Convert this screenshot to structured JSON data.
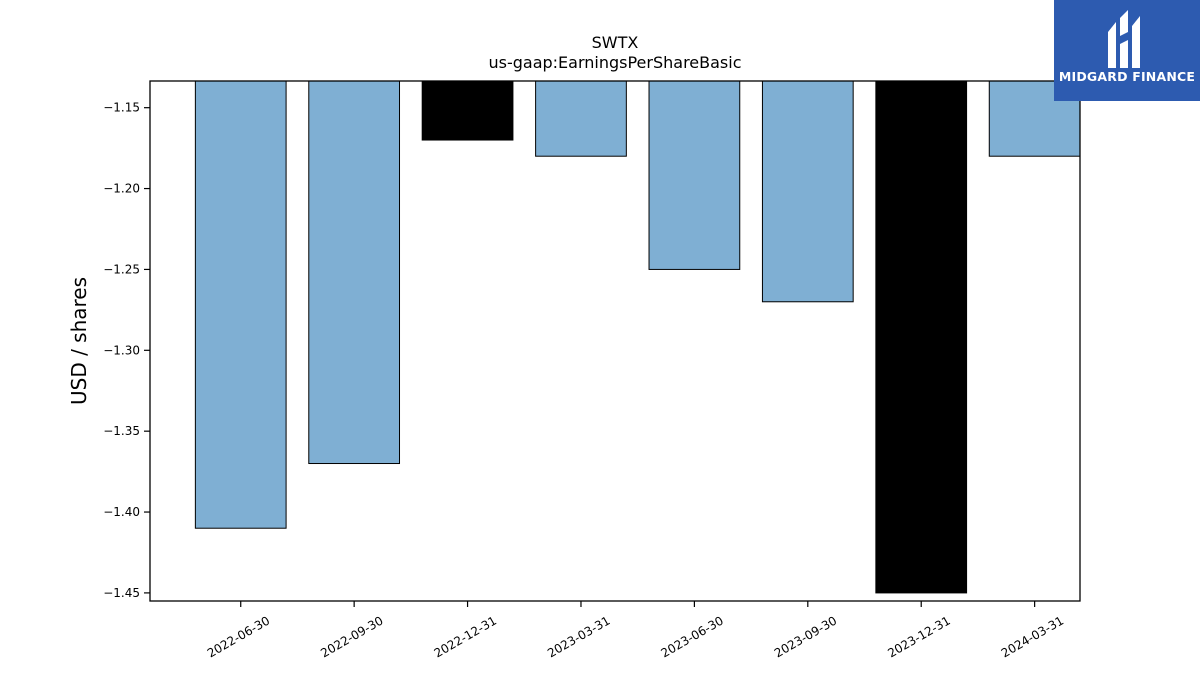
{
  "brand": {
    "name": "MIDGARD FINANCE",
    "icon": "midgard-m-logo-icon",
    "background_color": "#2d5bb0"
  },
  "chart_data": {
    "type": "bar",
    "title": "SWTX",
    "subtitle": "us-gaap:EarningsPerShareBasic",
    "xlabel": "",
    "ylabel": "USD / shares",
    "categories": [
      "2022-06-30",
      "2022-09-30",
      "2022-12-31",
      "2023-03-31",
      "2023-06-30",
      "2023-09-30",
      "2023-12-31",
      "2024-03-31"
    ],
    "values": [
      -1.41,
      -1.37,
      -1.17,
      -1.18,
      -1.25,
      -1.27,
      -1.45,
      -1.18
    ],
    "bar_colors": [
      "#7fafd3",
      "#7fafd3",
      "#000000",
      "#7fafd3",
      "#7fafd3",
      "#7fafd3",
      "#000000",
      "#7fafd3"
    ],
    "ylim": [
      -1.455,
      -1.1335
    ],
    "yticks": [
      -1.15,
      -1.2,
      -1.25,
      -1.3,
      -1.35,
      -1.4,
      -1.45
    ],
    "ytick_labels": [
      "−1.15",
      "−1.20",
      "−1.25",
      "−1.30",
      "−1.35",
      "−1.40",
      "−1.45"
    ],
    "grid": false,
    "legend": "none"
  }
}
